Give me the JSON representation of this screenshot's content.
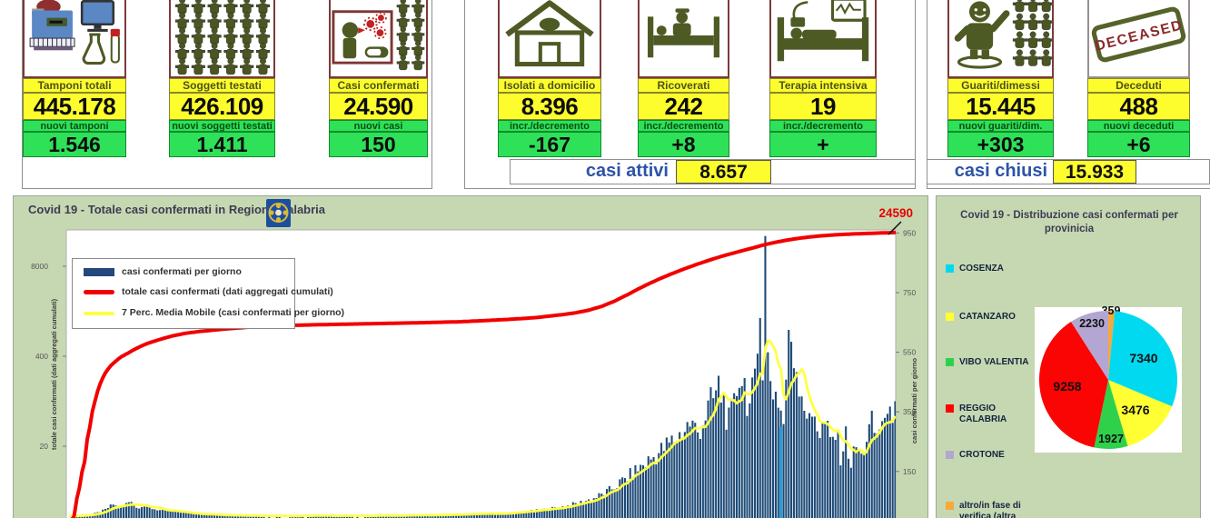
{
  "colors": {
    "panel_green": "#c6d8b2",
    "card_yellow": "#fdfd2e",
    "card_green": "#2ee158",
    "maroon_border": "#7d3a3a",
    "olive_icon": "#4e5a24",
    "bar_navy": "#1F4B78",
    "cumulative_red": "#f20000",
    "ma_yellow": "#ffff45",
    "highlight_blue": "#2e9ad5",
    "summary_blue": "#2d53a8"
  },
  "stats": {
    "cards": [
      {
        "title": "Tamponi totali",
        "value": "445.178",
        "sub_label": "nuovi tamponi",
        "sub_value": "1.546",
        "icon": "lab-analyzer-icon"
      },
      {
        "title": "Soggetti testati",
        "value": "426.109",
        "sub_label": "nuovi soggetti testati",
        "sub_value": "1.411",
        "icon": "tested-people-crowd-icon"
      },
      {
        "title": "Casi confermati",
        "value": "24.590",
        "sub_label": "nuovi casi",
        "sub_value": "150",
        "icon": "coughing-person-virus-icon"
      },
      {
        "title": "Isolati a domicilio",
        "value": "8.396",
        "sub_label": "incr./decremento",
        "sub_value": "-167",
        "icon": "house-icon"
      },
      {
        "title": "Ricoverati",
        "value": "242",
        "sub_label": "incr./decremento",
        "sub_value": "+8",
        "icon": "hospital-bed-icon"
      },
      {
        "title": "Terapia intensiva",
        "value": "19",
        "sub_label": "incr./decremento",
        "sub_value": "+",
        "icon": "icu-bed-icon"
      },
      {
        "title": "Guariti/dimessi",
        "value": "15.445",
        "sub_label": "nuovi guariti/dim.",
        "sub_value": "+303",
        "icon": "recovered-person-icon"
      },
      {
        "title": "Deceduti",
        "value": "488",
        "sub_label": "nuovi deceduti",
        "sub_value": "+6",
        "icon": "deceased-stamp-icon"
      }
    ],
    "summary": [
      {
        "label": "casi attivi",
        "value": "8.657"
      },
      {
        "label": "casi chiusi",
        "value": "15.933"
      }
    ],
    "stamp_text": "DECEASED"
  },
  "chart_data": [
    {
      "type": "bar",
      "title": "Covid 19 - Totale casi confermati in Regione Calabria",
      "logo": "calabria-region-logo",
      "legend": [
        "casi confermati per giorno",
        "totale casi confermati (dati aggregati cumulati)",
        "7 Perc. Media Mobile (casi confermati per giorno)"
      ],
      "left_axis": {
        "scale": "log",
        "label": "totale casi confermati (dati aggregati cumulati)",
        "ticks": [
          8000,
          400,
          20
        ]
      },
      "right_axis": {
        "scale": "linear",
        "label": "casi confermati  per giorno",
        "ticks": [
          950,
          750,
          550,
          350,
          150
        ],
        "ylim": [
          0,
          970
        ]
      },
      "annotation": {
        "text": "24590"
      },
      "days_total": 319,
      "series": [
        {
          "name": "casi confermati per giorno",
          "kind": "bar",
          "axis": "right",
          "color": "#1F4B78",
          "control_points": [
            [
              0,
              0
            ],
            [
              5,
              3
            ],
            [
              8,
              6
            ],
            [
              11,
              12
            ],
            [
              14,
              22
            ],
            [
              17,
              40
            ],
            [
              19,
              28
            ],
            [
              21,
              35
            ],
            [
              24,
              55
            ],
            [
              26,
              28
            ],
            [
              29,
              38
            ],
            [
              32,
              26
            ],
            [
              36,
              18
            ],
            [
              40,
              16
            ],
            [
              44,
              12
            ],
            [
              48,
              8
            ],
            [
              53,
              6
            ],
            [
              58,
              4
            ],
            [
              64,
              3
            ],
            [
              72,
              2
            ],
            [
              80,
              1
            ],
            [
              90,
              1
            ],
            [
              100,
              2
            ],
            [
              110,
              1
            ],
            [
              120,
              2
            ],
            [
              130,
              3
            ],
            [
              140,
              3
            ],
            [
              148,
              5
            ],
            [
              154,
              7
            ],
            [
              160,
              9
            ],
            [
              166,
              8
            ],
            [
              172,
              13
            ],
            [
              178,
              18
            ],
            [
              184,
              24
            ],
            [
              190,
              32
            ],
            [
              196,
              44
            ],
            [
              202,
              60
            ],
            [
              207,
              80
            ],
            [
              211,
              105
            ],
            [
              215,
              130
            ],
            [
              219,
              158
            ],
            [
              223,
              185
            ],
            [
              227,
              212
            ],
            [
              231,
              242
            ],
            [
              235,
              272
            ],
            [
              239,
              312
            ],
            [
              242,
              282
            ],
            [
              245,
              340
            ],
            [
              248,
              390
            ],
            [
              250,
              430
            ],
            [
              252,
              385
            ],
            [
              254,
              310
            ],
            [
              256,
              365
            ],
            [
              258,
              485
            ],
            [
              260,
              445
            ],
            [
              262,
              365
            ],
            [
              264,
              430
            ],
            [
              266,
              665
            ],
            [
              267,
              500
            ],
            [
              268,
              940
            ],
            [
              269,
              525
            ],
            [
              270,
              470
            ],
            [
              271,
              430
            ],
            [
              273,
              395
            ],
            [
              275,
              310
            ],
            [
              277,
              625
            ],
            [
              279,
              545
            ],
            [
              281,
              465
            ],
            [
              283,
              385
            ],
            [
              285,
              305
            ],
            [
              287,
              355
            ],
            [
              289,
              275
            ],
            [
              291,
              315
            ],
            [
              293,
              245
            ],
            [
              295,
              275
            ],
            [
              297,
              205
            ],
            [
              299,
              265
            ],
            [
              301,
              175
            ],
            [
              303,
              235
            ],
            [
              305,
              195
            ],
            [
              307,
              265
            ],
            [
              309,
              305
            ],
            [
              311,
              265
            ],
            [
              313,
              335
            ],
            [
              315,
              295
            ],
            [
              316,
              430
            ],
            [
              317,
              360
            ],
            [
              318,
              340
            ]
          ]
        },
        {
          "name": "totale casi confermati (dati aggregati cumulati)",
          "kind": "line",
          "axis": "left_log",
          "color": "#f20000",
          "control_points": [
            [
              0,
              1
            ],
            [
              2,
              2
            ],
            [
              4,
              5
            ],
            [
              6,
              12
            ],
            [
              8,
              38
            ],
            [
              10,
              90
            ],
            [
              12,
              160
            ],
            [
              14,
              230
            ],
            [
              16,
              290
            ],
            [
              18,
              340
            ],
            [
              20,
              390
            ],
            [
              23,
              450
            ],
            [
              26,
              520
            ],
            [
              30,
              610
            ],
            [
              35,
              700
            ],
            [
              40,
              790
            ],
            [
              45,
              860
            ],
            [
              50,
              910
            ],
            [
              55,
              950
            ],
            [
              60,
              990
            ],
            [
              70,
              1060
            ],
            [
              80,
              1100
            ],
            [
              90,
              1130
            ],
            [
              105,
              1160
            ],
            [
              120,
              1190
            ],
            [
              135,
              1220
            ],
            [
              150,
              1260
            ],
            [
              160,
              1310
            ],
            [
              170,
              1370
            ],
            [
              180,
              1450
            ],
            [
              190,
              1600
            ],
            [
              195,
              1700
            ],
            [
              200,
              1850
            ],
            [
              205,
              2100
            ],
            [
              210,
              2500
            ],
            [
              215,
              3100
            ],
            [
              220,
              3900
            ],
            [
              225,
              4800
            ],
            [
              230,
              5800
            ],
            [
              235,
              6900
            ],
            [
              240,
              8100
            ],
            [
              245,
              9400
            ],
            [
              250,
              10800
            ],
            [
              255,
              12200
            ],
            [
              260,
              13700
            ],
            [
              264,
              15000
            ],
            [
              268,
              16500
            ],
            [
              272,
              17800
            ],
            [
              276,
              19000
            ],
            [
              280,
              20100
            ],
            [
              284,
              21000
            ],
            [
              288,
              21800
            ],
            [
              292,
              22400
            ],
            [
              296,
              22900
            ],
            [
              300,
              23300
            ],
            [
              304,
              23650
            ],
            [
              308,
              23950
            ],
            [
              312,
              24200
            ],
            [
              315,
              24380
            ],
            [
              318,
              24590
            ]
          ],
          "final_value": 24590
        },
        {
          "name": "7 Perc. Media Mobile (casi confermati per giorno)",
          "kind": "line",
          "axis": "right",
          "color": "#ffff45",
          "derived": "7-day moving average of daily bars"
        }
      ],
      "highlight": {
        "day": 274,
        "value": 300,
        "color": "#2e9ad5"
      }
    },
    {
      "type": "pie",
      "title": "Covid 19 - Distribuzione casi confermati per provinicia",
      "slices": [
        {
          "label": "altro/in fase di verifica (altra",
          "value": 359,
          "color": "#f6a93b"
        },
        {
          "label": "COSENZA",
          "value": 7340,
          "color": "#00d9f0"
        },
        {
          "label": "CATANZARO",
          "value": 3476,
          "color": "#ffff33"
        },
        {
          "label": "VIBO VALENTIA",
          "value": 1927,
          "color": "#2fd14a"
        },
        {
          "label": "REGGIO CALABRIA",
          "value": 9258,
          "color": "#fb0404"
        },
        {
          "label": "CROTONE",
          "value": 2230,
          "color": "#b3a6d2"
        }
      ],
      "legend_order": [
        1,
        2,
        3,
        4,
        5,
        0
      ],
      "start_angle_deg": 0,
      "direction": "clockwise",
      "total": 24590
    }
  ]
}
